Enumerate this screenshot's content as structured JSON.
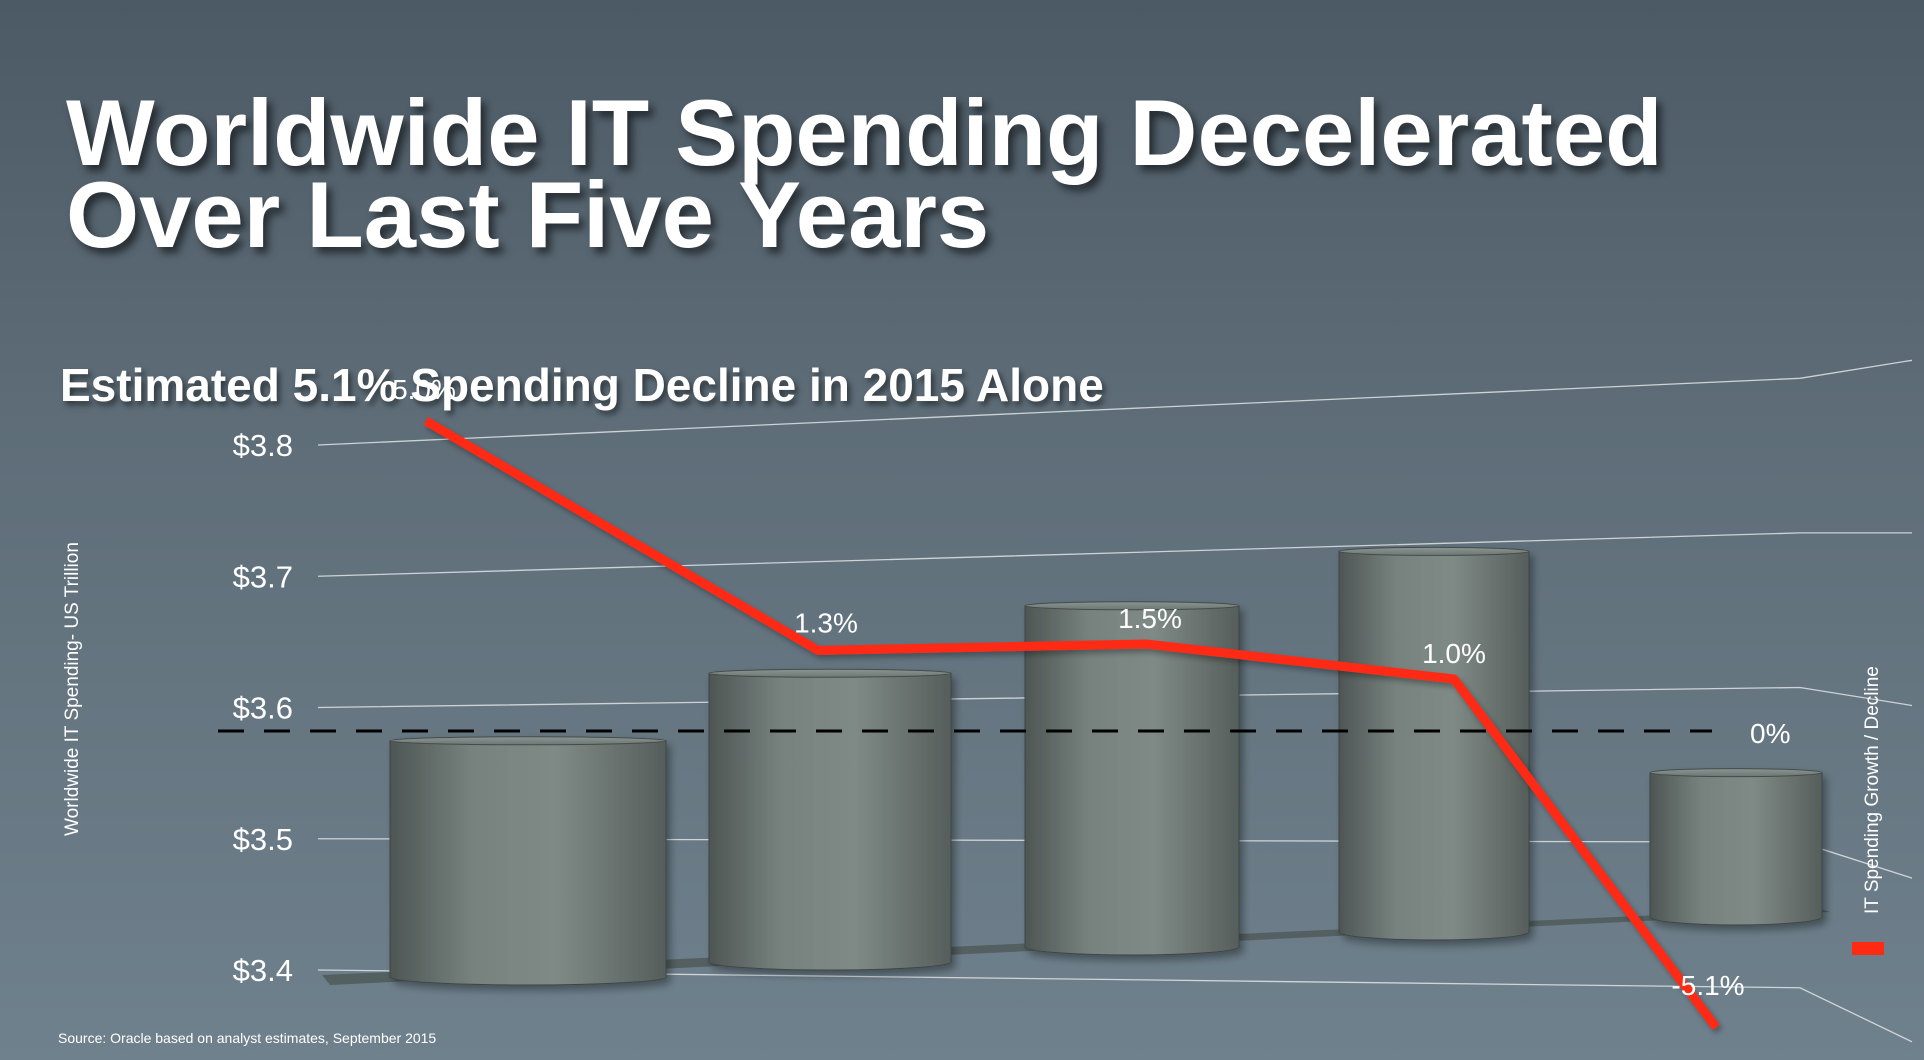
{
  "title_line1": "Worldwide IT Spending Decelerated",
  "title_line2": "Over Last Five Years",
  "source": "Source: Oracle based on analyst estimates, September 2015",
  "colors": {
    "bar": "#7b8682",
    "line": "#ff2a12",
    "gridline": "#e0e4e6",
    "zero_line": "#000000"
  },
  "chart_data": {
    "type": "bar",
    "subtitle": "Estimated 5.1% Spending Decline in 2015 Alone",
    "ylabel": "Worldwide IT Spending- US Trillion",
    "y2label": "IT Spending Growth / Decline",
    "ylim": [
      3.4,
      3.8
    ],
    "y_ticks": [
      "$3.8",
      "$3.7",
      "$3.6",
      "$3.5",
      "$3.4"
    ],
    "grid": true,
    "bar_values": [
      3.58,
      3.62,
      3.66,
      3.69,
      3.51
    ],
    "growth_line": {
      "values": [
        5.0,
        1.3,
        1.5,
        1.0,
        -5.1
      ],
      "labels": [
        "5.0%",
        "1.3%",
        "1.5%",
        "1.0%",
        "-5.1%"
      ]
    },
    "zero_label": "0%"
  }
}
